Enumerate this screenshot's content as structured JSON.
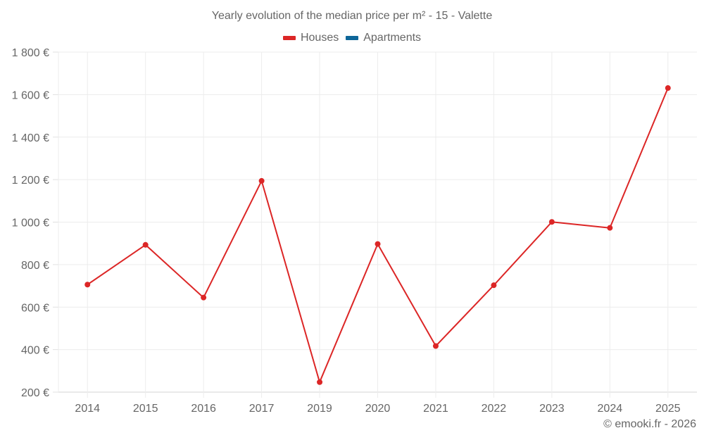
{
  "title": "Yearly evolution of the median price per m² - 15 - Valette",
  "legend": [
    {
      "label": "Houses",
      "color": "#dc2626"
    },
    {
      "label": "Apartments",
      "color": "#0e6699"
    }
  ],
  "credit": "© emooki.fr - 2026",
  "chart_data": {
    "type": "line",
    "title": "Yearly evolution of the median price per m² - 15 - Valette",
    "xlabel": "",
    "ylabel": "",
    "categories": [
      "2014",
      "2015",
      "2016",
      "2017",
      "2019",
      "2020",
      "2021",
      "2022",
      "2023",
      "2024",
      "2025"
    ],
    "series": [
      {
        "name": "Houses",
        "color": "#dc2626",
        "values": [
          706,
          893,
          645,
          1194,
          247,
          897,
          417,
          703,
          1001,
          973,
          1631
        ]
      },
      {
        "name": "Apartments",
        "color": "#0e6699",
        "values": []
      }
    ],
    "ylim": [
      200,
      1800
    ],
    "yticks": [
      200,
      400,
      600,
      800,
      1000,
      1200,
      1400,
      1600,
      1800
    ],
    "ytick_labels": [
      "200 €",
      "400 €",
      "600 €",
      "800 €",
      "1 000 €",
      "1 200 €",
      "1 400 €",
      "1 600 €",
      "1 800 €"
    ],
    "grid": true,
    "legend_position": "top"
  }
}
